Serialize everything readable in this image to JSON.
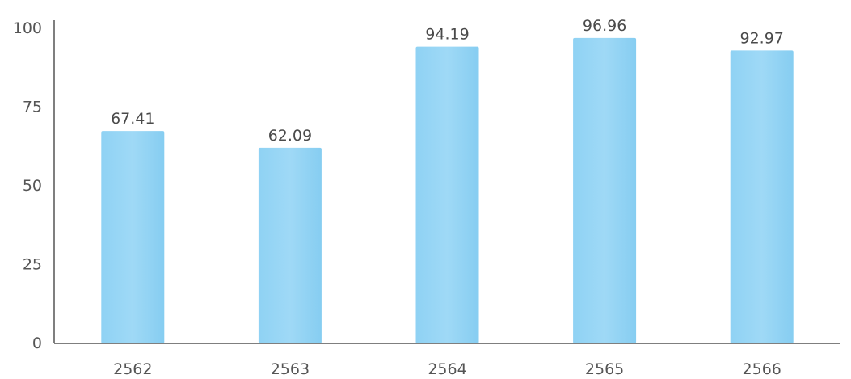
{
  "chart_data": {
    "type": "bar",
    "title": "",
    "xlabel": "",
    "ylabel": "",
    "categories": [
      "2562",
      "2563",
      "2564",
      "2565",
      "2566"
    ],
    "values": [
      67.41,
      62.09,
      94.19,
      96.96,
      92.97
    ],
    "data_labels": [
      "67.41",
      "62.09",
      "94.19",
      "96.96",
      "92.97"
    ],
    "ylim": [
      0,
      100
    ],
    "yticks": [
      0,
      25,
      50,
      75,
      100
    ],
    "ytick_labels": [
      "0",
      "25",
      "50",
      "75",
      "100"
    ],
    "grid": false,
    "legend": "none",
    "bar_color": "#8fd3f4",
    "bar_color_alt": "#7fc7ef",
    "axis_color": "#555555"
  }
}
